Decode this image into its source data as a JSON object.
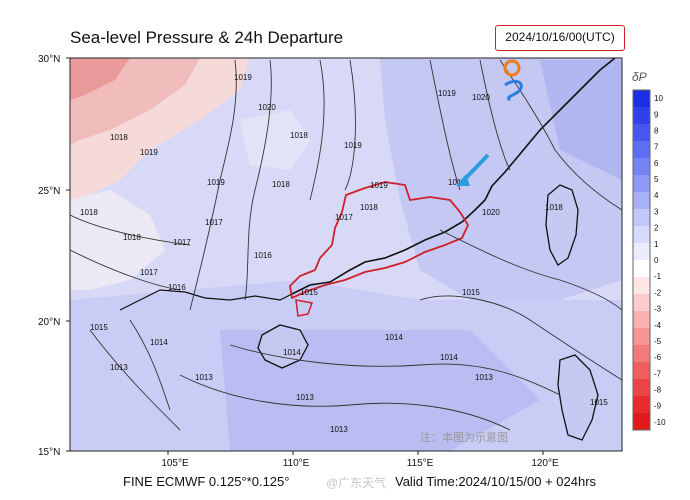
{
  "title": "Sea-level Pressure & 24h Departure",
  "valid_box": "2024/10/16/00(UTC)",
  "footer_model": "FINE ECMWF 0.125°*0.125°",
  "footer_valid": "Valid Time:2024/10/15/00 + 024hrs",
  "watermark_footer": "@广东天气",
  "note": "注：本图为示意图",
  "lat_labels": [
    "30°N",
    "25°N",
    "20°N",
    "15°N"
  ],
  "lon_labels": [
    "105°E",
    "110°E",
    "115°E",
    "120°E"
  ],
  "colorbar": {
    "label": "δP",
    "ticks": [
      "10",
      "9",
      "8",
      "7",
      "6",
      "5",
      "4",
      "3",
      "2",
      "1",
      "0",
      "-1",
      "-2",
      "-3",
      "-4",
      "-5",
      "-6",
      "-7",
      "-8",
      "-9",
      "-10"
    ],
    "colors": [
      "#1b2ee6",
      "#2f40ea",
      "#4656ee",
      "#5e6df1",
      "#7683f4",
      "#8f9af6",
      "#a8b1f8",
      "#c0c7fa",
      "#d6dbfc",
      "#eaecfd",
      "#ffffff",
      "#fde6e6",
      "#fbcccc",
      "#f8b0b0",
      "#f59595",
      "#f27a7a",
      "#ef5f5f",
      "#ec4545",
      "#e92b2b",
      "#e21a1a"
    ]
  },
  "isobars": [
    "1019",
    "1020",
    "1020",
    "1019",
    "1018",
    "1019",
    "1019",
    "1018",
    "1019",
    "1018",
    "1018",
    "1017",
    "1017",
    "1018",
    "1017",
    "1016",
    "1016",
    "1017",
    "1018",
    "1015",
    "1015",
    "1014",
    "1013",
    "1014",
    "1014",
    "1013",
    "1013",
    "1013",
    "1013",
    "1014",
    "1015",
    "1018",
    "1015",
    "1019",
    "1019",
    "1020"
  ]
}
